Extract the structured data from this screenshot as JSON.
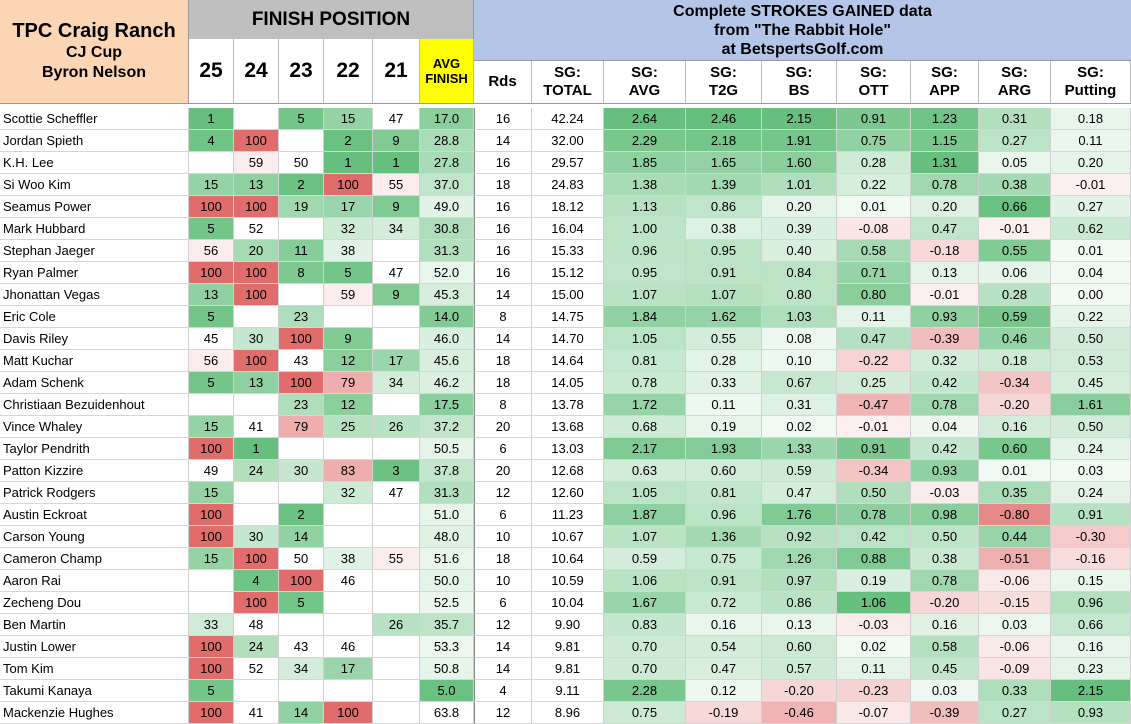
{
  "header": {
    "title_lines": [
      "TPC Craig Ranch",
      "CJ Cup",
      "Byron Nelson"
    ],
    "finish_position_label": "FINISH POSITION",
    "sg_title_lines": [
      "Complete STROKES GAINED data",
      "from \"The Rabbit Hole\"",
      "at BetspertsGolf.com"
    ],
    "years": [
      "25",
      "24",
      "23",
      "22",
      "21"
    ],
    "avg_finish_lines": [
      "AVG",
      "FINISH"
    ],
    "rds_label": "Rds",
    "sg_columns": [
      [
        "SG:",
        "TOTAL"
      ],
      [
        "SG:",
        "AVG"
      ],
      [
        "SG:",
        "T2G"
      ],
      [
        "SG:",
        "BS"
      ],
      [
        "SG:",
        "OTT"
      ],
      [
        "SG:",
        "APP"
      ],
      [
        "SG:",
        "ARG"
      ],
      [
        "SG:",
        "Putting"
      ]
    ]
  },
  "rows": [
    {
      "name": "Scottie Scheffler",
      "fin": [
        "1",
        "",
        "5",
        "15",
        "47"
      ],
      "avg": "17.0",
      "rds": "16",
      "total": "42.24",
      "sg": [
        "2.64",
        "2.46",
        "2.15",
        "0.91",
        "1.23",
        "0.31",
        "0.18"
      ]
    },
    {
      "name": "Jordan Spieth",
      "fin": [
        "4",
        "100",
        "",
        "2",
        "9"
      ],
      "avg": "28.8",
      "rds": "14",
      "total": "32.00",
      "sg": [
        "2.29",
        "2.18",
        "1.91",
        "0.75",
        "1.15",
        "0.27",
        "0.11"
      ]
    },
    {
      "name": "K.H. Lee",
      "fin": [
        "",
        "59",
        "50",
        "1",
        "1"
      ],
      "avg": "27.8",
      "rds": "16",
      "total": "29.57",
      "sg": [
        "1.85",
        "1.65",
        "1.60",
        "0.28",
        "1.31",
        "0.05",
        "0.20"
      ]
    },
    {
      "name": "Si Woo Kim",
      "fin": [
        "15",
        "13",
        "2",
        "100",
        "55"
      ],
      "avg": "37.0",
      "rds": "18",
      "total": "24.83",
      "sg": [
        "1.38",
        "1.39",
        "1.01",
        "0.22",
        "0.78",
        "0.38",
        "-0.01"
      ]
    },
    {
      "name": "Seamus Power",
      "fin": [
        "100",
        "100",
        "19",
        "17",
        "9"
      ],
      "avg": "49.0",
      "rds": "16",
      "total": "18.12",
      "sg": [
        "1.13",
        "0.86",
        "0.20",
        "0.01",
        "0.20",
        "0.66",
        "0.27"
      ]
    },
    {
      "name": "Mark Hubbard",
      "fin": [
        "5",
        "52",
        "",
        "32",
        "34"
      ],
      "avg": "30.8",
      "rds": "16",
      "total": "16.04",
      "sg": [
        "1.00",
        "0.38",
        "0.39",
        "-0.08",
        "0.47",
        "-0.01",
        "0.62"
      ]
    },
    {
      "name": "Stephan Jaeger",
      "fin": [
        "56",
        "20",
        "11",
        "38",
        ""
      ],
      "avg": "31.3",
      "rds": "16",
      "total": "15.33",
      "sg": [
        "0.96",
        "0.95",
        "0.40",
        "0.58",
        "-0.18",
        "0.55",
        "0.01"
      ]
    },
    {
      "name": "Ryan Palmer",
      "fin": [
        "100",
        "100",
        "8",
        "5",
        "47"
      ],
      "avg": "52.0",
      "rds": "16",
      "total": "15.12",
      "sg": [
        "0.95",
        "0.91",
        "0.84",
        "0.71",
        "0.13",
        "0.06",
        "0.04"
      ]
    },
    {
      "name": "Jhonattan Vegas",
      "fin": [
        "13",
        "100",
        "",
        "59",
        "9"
      ],
      "avg": "45.3",
      "rds": "14",
      "total": "15.00",
      "sg": [
        "1.07",
        "1.07",
        "0.80",
        "0.80",
        "-0.01",
        "0.28",
        "0.00"
      ]
    },
    {
      "name": "Eric Cole",
      "fin": [
        "5",
        "",
        "23",
        "",
        ""
      ],
      "avg": "14.0",
      "rds": "8",
      "total": "14.75",
      "sg": [
        "1.84",
        "1.62",
        "1.03",
        "0.11",
        "0.93",
        "0.59",
        "0.22"
      ]
    },
    {
      "name": "Davis Riley",
      "fin": [
        "45",
        "30",
        "100",
        "9",
        ""
      ],
      "avg": "46.0",
      "rds": "14",
      "total": "14.70",
      "sg": [
        "1.05",
        "0.55",
        "0.08",
        "0.47",
        "-0.39",
        "0.46",
        "0.50"
      ]
    },
    {
      "name": "Matt Kuchar",
      "fin": [
        "56",
        "100",
        "43",
        "12",
        "17"
      ],
      "avg": "45.6",
      "rds": "18",
      "total": "14.64",
      "sg": [
        "0.81",
        "0.28",
        "0.10",
        "-0.22",
        "0.32",
        "0.18",
        "0.53"
      ]
    },
    {
      "name": "Adam Schenk",
      "fin": [
        "5",
        "13",
        "100",
        "79",
        "34"
      ],
      "avg": "46.2",
      "rds": "18",
      "total": "14.05",
      "sg": [
        "0.78",
        "0.33",
        "0.67",
        "0.25",
        "0.42",
        "-0.34",
        "0.45"
      ]
    },
    {
      "name": "Christiaan Bezuidenhout",
      "fin": [
        "",
        "",
        "23",
        "12",
        ""
      ],
      "avg": "17.5",
      "rds": "8",
      "total": "13.78",
      "sg": [
        "1.72",
        "0.11",
        "0.31",
        "-0.47",
        "0.78",
        "-0.20",
        "1.61"
      ]
    },
    {
      "name": "Vince Whaley",
      "fin": [
        "15",
        "41",
        "79",
        "25",
        "26"
      ],
      "avg": "37.2",
      "rds": "20",
      "total": "13.68",
      "sg": [
        "0.68",
        "0.19",
        "0.02",
        "-0.01",
        "0.04",
        "0.16",
        "0.50"
      ]
    },
    {
      "name": "Taylor Pendrith",
      "fin": [
        "100",
        "1",
        "",
        "",
        ""
      ],
      "avg": "50.5",
      "rds": "6",
      "total": "13.03",
      "sg": [
        "2.17",
        "1.93",
        "1.33",
        "0.91",
        "0.42",
        "0.60",
        "0.24"
      ]
    },
    {
      "name": "Patton Kizzire",
      "fin": [
        "49",
        "24",
        "30",
        "83",
        "3"
      ],
      "avg": "37.8",
      "rds": "20",
      "total": "12.68",
      "sg": [
        "0.63",
        "0.60",
        "0.59",
        "-0.34",
        "0.93",
        "0.01",
        "0.03"
      ]
    },
    {
      "name": "Patrick Rodgers",
      "fin": [
        "15",
        "",
        "",
        "32",
        "47"
      ],
      "avg": "31.3",
      "rds": "12",
      "total": "12.60",
      "sg": [
        "1.05",
        "0.81",
        "0.47",
        "0.50",
        "-0.03",
        "0.35",
        "0.24"
      ]
    },
    {
      "name": "Austin Eckroat",
      "fin": [
        "100",
        "",
        "2",
        "",
        ""
      ],
      "avg": "51.0",
      "rds": "6",
      "total": "11.23",
      "sg": [
        "1.87",
        "0.96",
        "1.76",
        "0.78",
        "0.98",
        "-0.80",
        "0.91"
      ]
    },
    {
      "name": "Carson Young",
      "fin": [
        "100",
        "30",
        "14",
        "",
        ""
      ],
      "avg": "48.0",
      "rds": "10",
      "total": "10.67",
      "sg": [
        "1.07",
        "1.36",
        "0.92",
        "0.42",
        "0.50",
        "0.44",
        "-0.30"
      ]
    },
    {
      "name": "Cameron Champ",
      "fin": [
        "15",
        "100",
        "50",
        "38",
        "55"
      ],
      "avg": "51.6",
      "rds": "18",
      "total": "10.64",
      "sg": [
        "0.59",
        "0.75",
        "1.26",
        "0.88",
        "0.38",
        "-0.51",
        "-0.16"
      ]
    },
    {
      "name": "Aaron Rai",
      "fin": [
        "",
        "4",
        "100",
        "46",
        ""
      ],
      "avg": "50.0",
      "rds": "10",
      "total": "10.59",
      "sg": [
        "1.06",
        "0.91",
        "0.97",
        "0.19",
        "0.78",
        "-0.06",
        "0.15"
      ]
    },
    {
      "name": "Zecheng Dou",
      "fin": [
        "",
        "100",
        "5",
        "",
        ""
      ],
      "avg": "52.5",
      "rds": "6",
      "total": "10.04",
      "sg": [
        "1.67",
        "0.72",
        "0.86",
        "1.06",
        "-0.20",
        "-0.15",
        "0.96"
      ]
    },
    {
      "name": "Ben Martin",
      "fin": [
        "33",
        "48",
        "",
        "",
        "26"
      ],
      "avg": "35.7",
      "rds": "12",
      "total": "9.90",
      "sg": [
        "0.83",
        "0.16",
        "0.13",
        "-0.03",
        "0.16",
        "0.03",
        "0.66"
      ]
    },
    {
      "name": "Justin Lower",
      "fin": [
        "100",
        "24",
        "43",
        "46",
        ""
      ],
      "avg": "53.3",
      "rds": "14",
      "total": "9.81",
      "sg": [
        "0.70",
        "0.54",
        "0.60",
        "0.02",
        "0.58",
        "-0.06",
        "0.16"
      ]
    },
    {
      "name": "Tom Kim",
      "fin": [
        "100",
        "52",
        "34",
        "17",
        ""
      ],
      "avg": "50.8",
      "rds": "14",
      "total": "9.81",
      "sg": [
        "0.70",
        "0.47",
        "0.57",
        "0.11",
        "0.45",
        "-0.09",
        "0.23"
      ]
    },
    {
      "name": "Takumi Kanaya",
      "fin": [
        "5",
        "",
        "",
        "",
        ""
      ],
      "avg": "5.0",
      "rds": "4",
      "total": "9.11",
      "sg": [
        "2.28",
        "0.12",
        "-0.20",
        "-0.23",
        "0.03",
        "0.33",
        "2.15"
      ]
    },
    {
      "name": "Mackenzie Hughes",
      "fin": [
        "100",
        "41",
        "14",
        "100",
        ""
      ],
      "avg": "63.8",
      "rds": "12",
      "total": "8.96",
      "sg": [
        "0.75",
        "-0.19",
        "-0.46",
        "-0.07",
        "-0.39",
        "0.27",
        "0.93"
      ]
    }
  ],
  "colors": {
    "title_bg": "#fcd5b4",
    "finish_header_bg": "#bfbfbf",
    "sg_header_bg": "#b4c6e7",
    "avg_finish_header_bg": "#ffff00",
    "good": "#63be7b",
    "bad": "#e06c6c"
  }
}
